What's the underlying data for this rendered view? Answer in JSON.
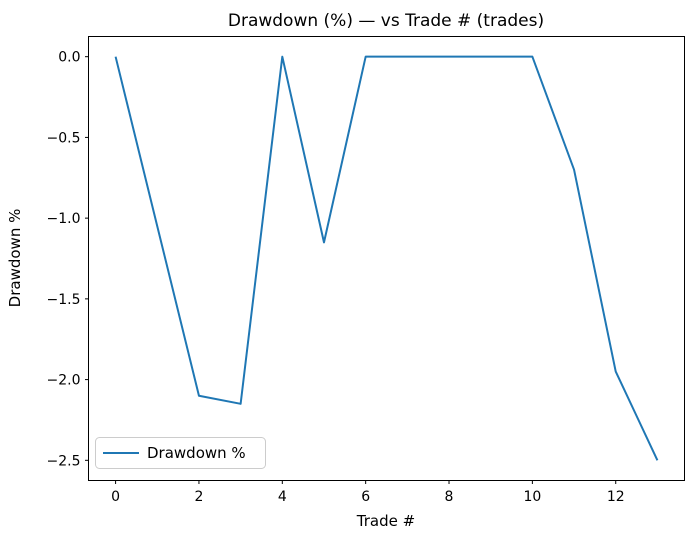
{
  "chart_data": {
    "type": "line",
    "title": "Drawdown (%) — vs Trade # (trades)",
    "xlabel": "Trade #",
    "ylabel": "Drawdown %",
    "x": [
      0,
      1,
      2,
      3,
      4,
      5,
      6,
      7,
      8,
      9,
      10,
      11,
      12,
      13
    ],
    "series": [
      {
        "name": "Drawdown %",
        "values": [
          0.0,
          -1.05,
          -2.1,
          -2.15,
          0.0,
          -1.15,
          0.0,
          0.0,
          0.0,
          0.0,
          0.0,
          -0.7,
          -1.95,
          -2.5
        ],
        "color": "#1f77b4"
      }
    ],
    "xlim": [
      -0.65,
      13.65
    ],
    "ylim": [
      -2.625,
      0.125
    ],
    "xticks": [
      0,
      2,
      4,
      6,
      8,
      10,
      12
    ],
    "xtick_labels": [
      "0",
      "2",
      "4",
      "6",
      "8",
      "10",
      "12"
    ],
    "yticks": [
      0.0,
      -0.5,
      -1.0,
      -1.5,
      -2.0,
      -2.5
    ],
    "ytick_labels": [
      "0.0",
      "−0.5",
      "−1.0",
      "−1.5",
      "−2.0",
      "−2.5"
    ],
    "grid": false,
    "legend": {
      "position": "lower left",
      "entries": [
        {
          "label": "Drawdown %",
          "color": "#1f77b4"
        }
      ]
    },
    "colors": {
      "line": "#1f77b4",
      "spine": "#000000",
      "text": "#000000",
      "background": "#ffffff",
      "legend_border": "#cccccc"
    }
  }
}
